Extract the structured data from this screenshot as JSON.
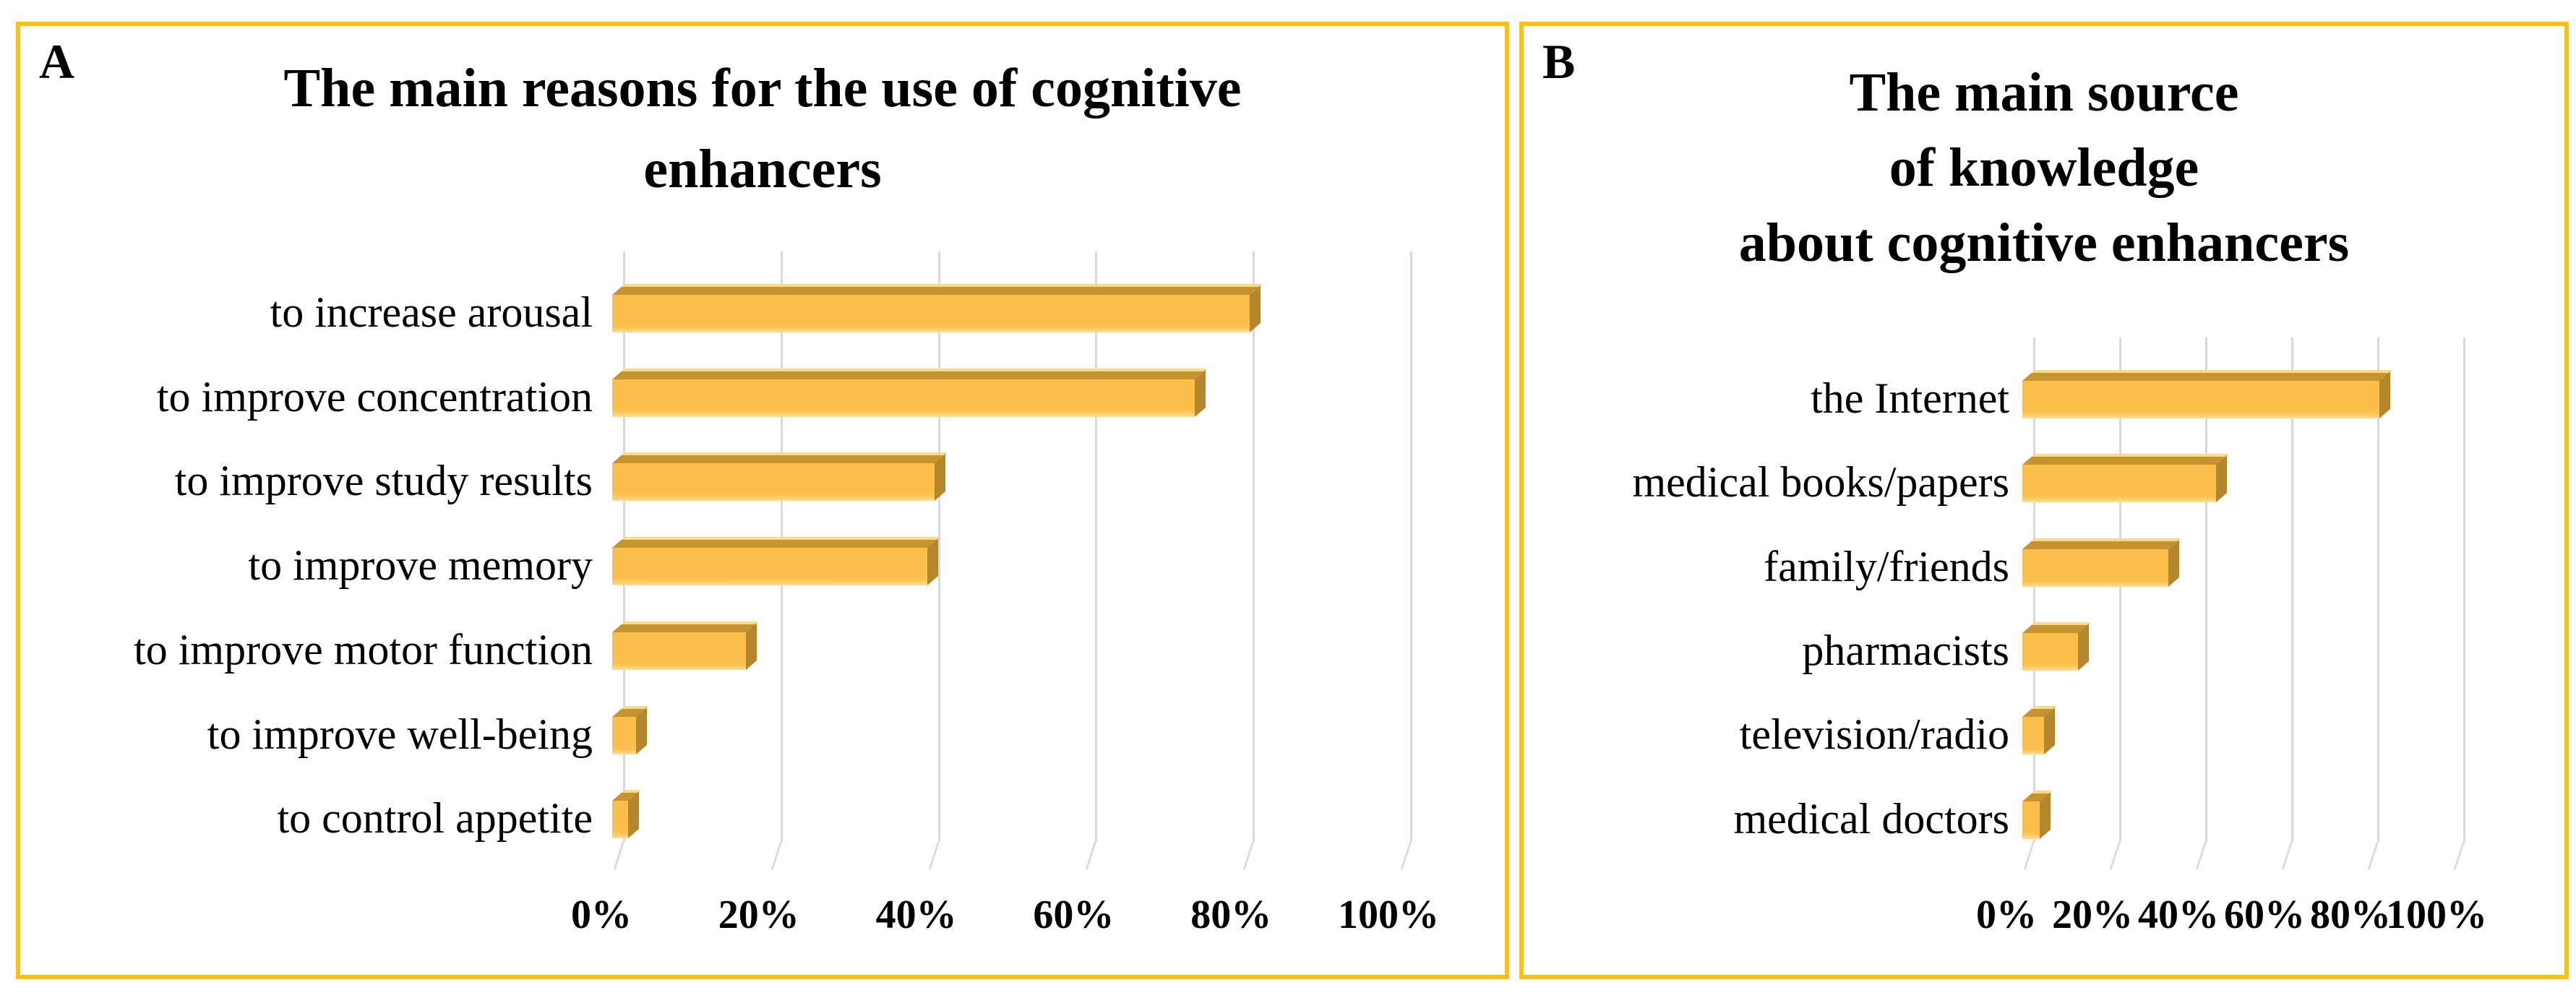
{
  "colors": {
    "panel_border": "#FFC010",
    "bar_face": "#FCBF4B",
    "bar_top_face": "#C6942F",
    "bar_side_face": "#B5872C",
    "bar_highlight": "#FDD98B",
    "gridline": "#D9D9D9",
    "text": "#000000",
    "background": "#FFFFFF"
  },
  "chart_data": [
    {
      "panel_label": "A",
      "type": "bar",
      "orientation": "horizontal",
      "style": "3d-gold-bars",
      "title": "The main reasons for the use of cognitive enhancers",
      "title_lines": [
        "The main reasons for the use of cognitive",
        "enhancers"
      ],
      "categories": [
        "to increase arousal",
        "to improve concentration",
        "to improve study results",
        "to improve memory",
        "to improve motor function",
        "to improve well-being",
        "to control appetite"
      ],
      "values_percent": [
        81,
        74,
        41,
        40,
        17,
        3,
        2
      ],
      "xlabel": "",
      "ylabel": "",
      "x_tick_labels": [
        "0%",
        "20%",
        "40%",
        "60%",
        "80%",
        "100%"
      ],
      "xlim": [
        0,
        100
      ],
      "grid": true,
      "legend": false
    },
    {
      "panel_label": "B",
      "type": "bar",
      "orientation": "horizontal",
      "style": "3d-gold-bars",
      "title": "The main source of knowledge about cognitive enhancers",
      "title_lines": [
        "The main source",
        "of knowledge",
        "about cognitive enhancers"
      ],
      "categories": [
        "the Internet",
        "medical books/papers",
        "family/friends",
        "pharmacists",
        "television/radio",
        "medical doctors"
      ],
      "values_percent": [
        83,
        45,
        34,
        13,
        5,
        4
      ],
      "xlabel": "",
      "ylabel": "",
      "x_tick_labels": [
        "0%",
        "20%",
        "40%",
        "60%",
        "80%",
        "100%"
      ],
      "xlim": [
        0,
        100
      ],
      "grid": true,
      "legend": false
    }
  ]
}
